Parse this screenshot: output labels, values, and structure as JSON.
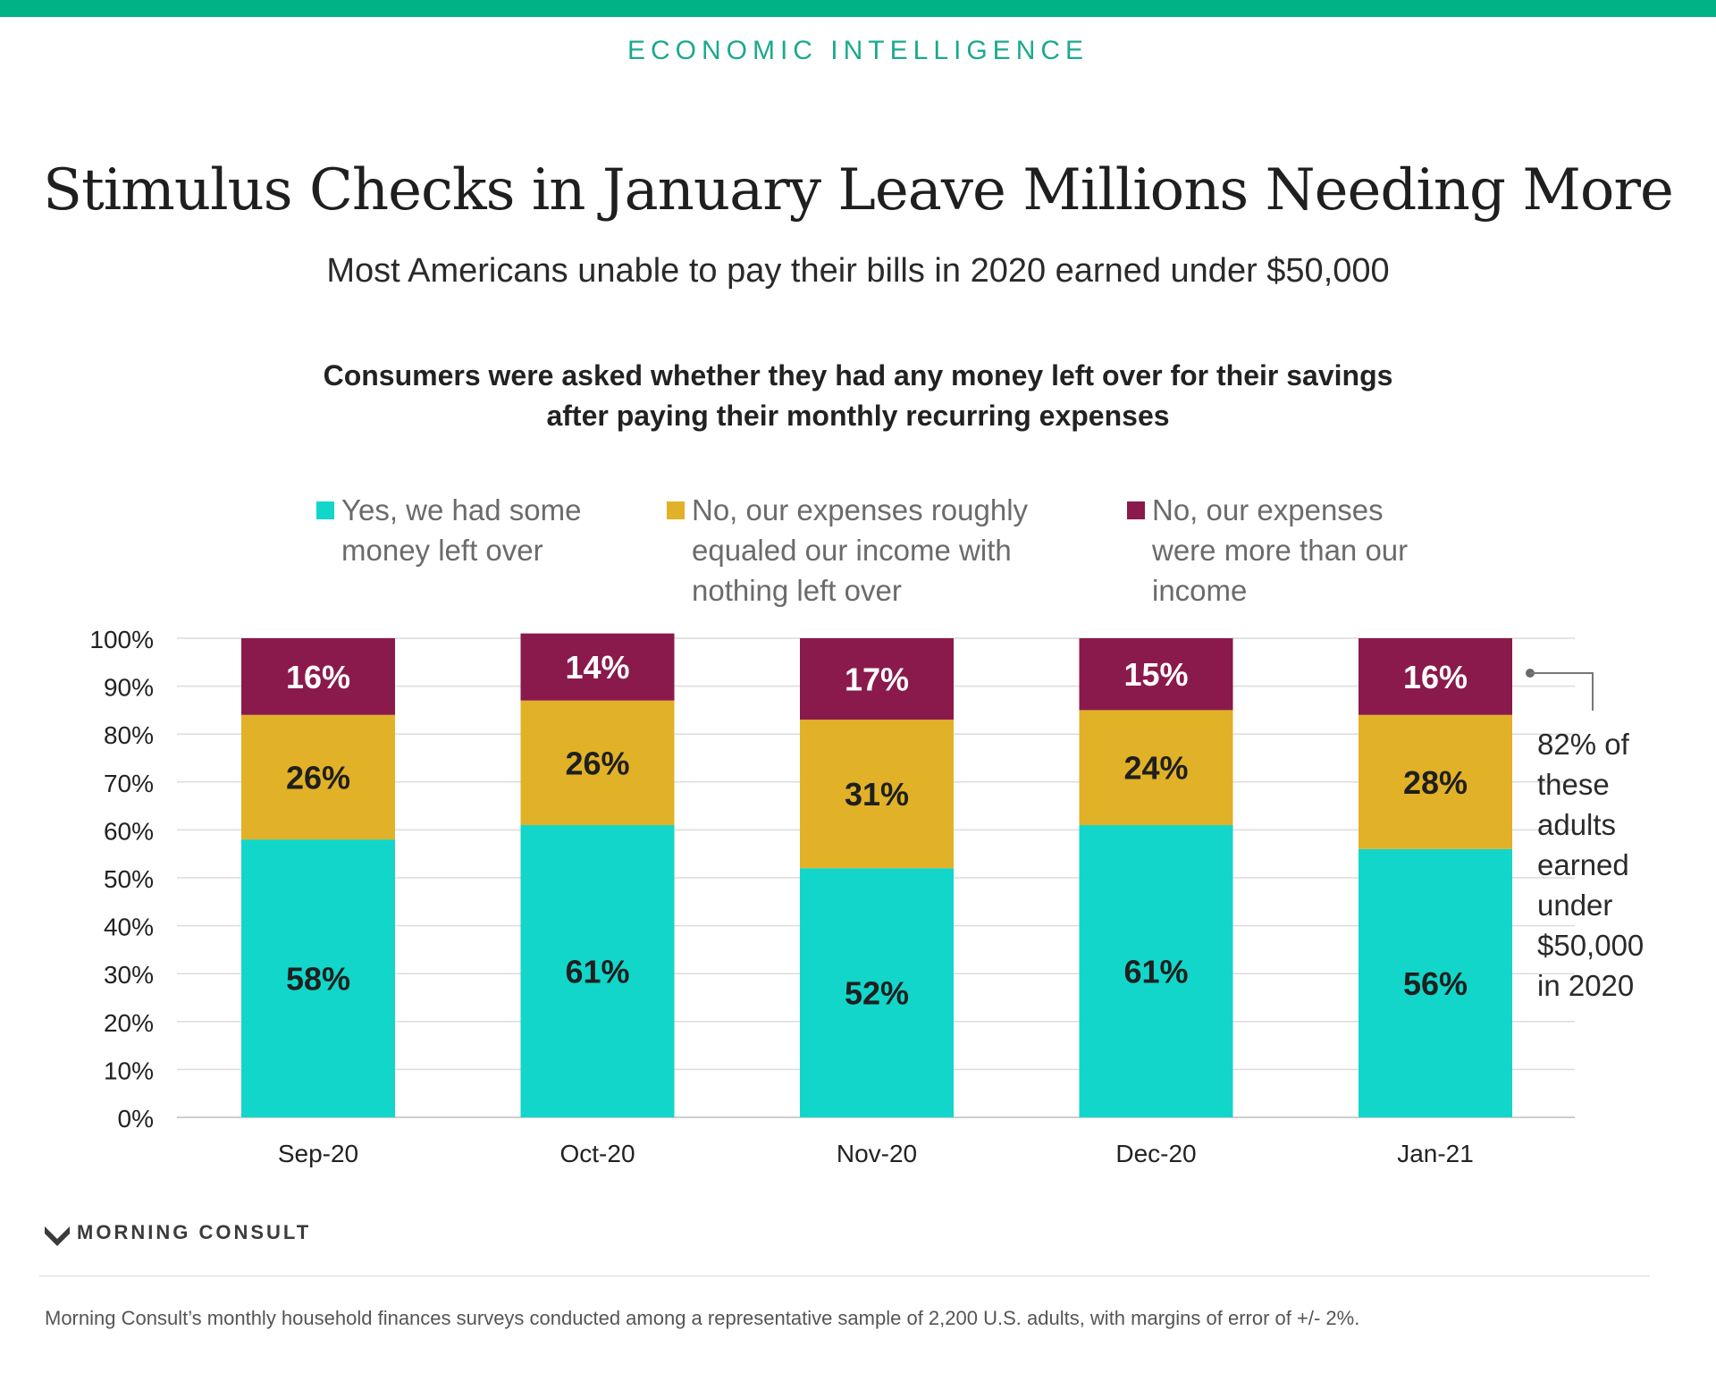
{
  "header": {
    "kicker": "ECONOMIC INTELLIGENCE",
    "title": "Stimulus Checks in January Leave Millions Needing More",
    "subtitle": "Most Americans unable to pay their bills in 2020 earned under $50,000",
    "question": "Consumers were asked whether they had any money left over for their savings after paying their monthly recurring expenses"
  },
  "legend": [
    {
      "label": "Yes, we had some money left over",
      "color": "#12d6c9"
    },
    {
      "label": "No, our expenses roughly equaled our income with nothing left over",
      "color": "#e1b127"
    },
    {
      "label": "No, our expenses were more than our income",
      "color": "#8a1a4b"
    }
  ],
  "annotation": "82% of these adults earned under $50,000 in 2020",
  "brand": {
    "name": "MORNING CONSULT",
    "accent": "#00b386"
  },
  "footnote": "Morning Consult’s monthly household finances surveys conducted among a representative sample of 2,200 U.S. adults, with margins of error of +/- 2%.",
  "chart_data": {
    "type": "bar",
    "stacked": true,
    "categories": [
      "Sep-20",
      "Oct-20",
      "Nov-20",
      "Dec-20",
      "Jan-21"
    ],
    "series": [
      {
        "name": "Yes, we had some money left over",
        "values": [
          58,
          61,
          52,
          61,
          56
        ],
        "color": "#12d6c9"
      },
      {
        "name": "No, our expenses roughly equaled our income with nothing left over",
        "values": [
          26,
          26,
          31,
          24,
          28
        ],
        "color": "#e1b127"
      },
      {
        "name": "No, our expenses were more than our income",
        "values": [
          16,
          14,
          17,
          15,
          16
        ],
        "color": "#8a1a4b"
      }
    ],
    "data_labels": [
      [
        "58%",
        "61%",
        "52%",
        "61%",
        "56%"
      ],
      [
        "26%",
        "26%",
        "31%",
        "24%",
        "28%"
      ],
      [
        "16%",
        "14%",
        "17%",
        "15%",
        "16%"
      ]
    ],
    "yticks": [
      "0%",
      "10%",
      "20%",
      "30%",
      "40%",
      "50%",
      "60%",
      "70%",
      "80%",
      "90%",
      "100%"
    ],
    "ylim": [
      0,
      100
    ],
    "grid": true,
    "legend_position": "top"
  }
}
